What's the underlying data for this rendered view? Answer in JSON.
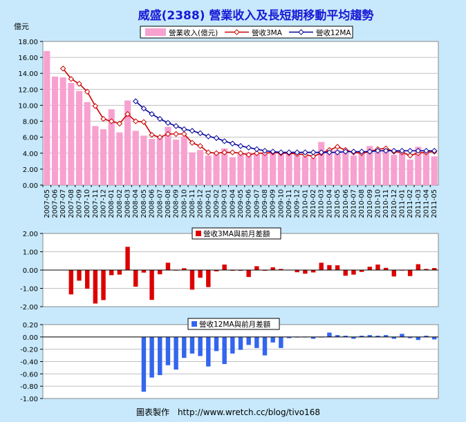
{
  "title": "威盛(2388) 營業收入及長短期移動平均趨勢",
  "footer": "圖表製作　http://www.wretch.cc/blog/tivo168",
  "colors": {
    "background": "#c7e9fb",
    "revenue_bar": "#f7a1d0",
    "ma3_line": "#cc0000",
    "ma12_line": "#000099",
    "diff3_bar": "#dd0000",
    "diff12_bar": "#3366ee"
  },
  "chart_data": [
    {
      "type": "bar",
      "ylabel": "億元",
      "ylim": [
        0,
        18
      ],
      "yticks": [
        "0.00",
        "2.00",
        "4.00",
        "6.00",
        "8.00",
        "10.00",
        "12.00",
        "14.00",
        "16.00",
        "18.00"
      ],
      "legend_position": "top",
      "categories": [
        "2007-05",
        "2007-06",
        "2007-07",
        "2007-08",
        "2007-09",
        "2007-10",
        "2007-11",
        "2007-12",
        "2008-01",
        "2008-02",
        "2008-03",
        "2008-04",
        "2008-05",
        "2008-06",
        "2008-07",
        "2008-08",
        "2008-09",
        "2008-10",
        "2008-11",
        "2008-12",
        "2009-01",
        "2009-02",
        "2009-03",
        "2009-04",
        "2009-05",
        "2009-06",
        "2009-07",
        "2009-08",
        "2009-09",
        "2009-10",
        "2009-11",
        "2009-12",
        "2010-01",
        "2010-02",
        "2010-03",
        "2010-04",
        "2010-05",
        "2010-06",
        "2010-07",
        "2010-08",
        "2010-09",
        "2010-10",
        "2010-11",
        "2010-12",
        "2011-01",
        "2011-02",
        "2011-03",
        "2011-04",
        "2011-05"
      ],
      "series": [
        {
          "name": "營業收入(億元)",
          "type": "bar",
          "values": [
            16.8,
            13.6,
            13.5,
            12.8,
            11.8,
            10.4,
            7.4,
            7.0,
            9.5,
            6.6,
            10.6,
            6.8,
            6.2,
            5.8,
            6.0,
            7.3,
            5.7,
            6.1,
            4.1,
            4.4,
            3.7,
            4.1,
            4.6,
            3.5,
            3.9,
            4.1,
            3.9,
            4.1,
            4.1,
            4.0,
            3.9,
            3.9,
            3.6,
            3.4,
            5.4,
            4.5,
            4.4,
            4.2,
            3.7,
            4.1,
            4.9,
            4.3,
            4.5,
            3.8,
            4.1,
            3.2,
            4.8,
            4.2,
            3.6
          ]
        },
        {
          "name": "營收3MA",
          "type": "line",
          "values": [
            null,
            null,
            14.6,
            13.3,
            12.7,
            11.7,
            9.9,
            8.3,
            8.0,
            7.7,
            8.9,
            8.0,
            7.9,
            6.3,
            6.0,
            6.4,
            6.4,
            6.4,
            5.3,
            4.9,
            4.1,
            4.0,
            4.1,
            4.1,
            4.0,
            3.8,
            4.0,
            4.0,
            4.1,
            4.0,
            4.0,
            3.9,
            3.8,
            3.6,
            4.0,
            4.4,
            4.8,
            4.4,
            4.1,
            4.0,
            4.2,
            4.5,
            4.6,
            4.2,
            4.1,
            3.7,
            4.0,
            4.1,
            4.2
          ]
        },
        {
          "name": "營收12MA",
          "type": "line",
          "values": [
            null,
            null,
            null,
            null,
            null,
            null,
            null,
            null,
            null,
            null,
            null,
            10.5,
            9.6,
            8.9,
            8.3,
            7.8,
            7.4,
            7.0,
            6.8,
            6.5,
            6.1,
            5.9,
            5.5,
            5.2,
            4.9,
            4.7,
            4.5,
            4.3,
            4.2,
            4.1,
            4.1,
            4.1,
            4.1,
            4.1,
            4.1,
            4.1,
            4.1,
            4.2,
            4.2,
            4.2,
            4.2,
            4.3,
            4.3,
            4.3,
            4.3,
            4.3,
            4.3,
            4.3,
            4.3
          ]
        }
      ]
    },
    {
      "type": "bar",
      "ylim": [
        -2,
        2
      ],
      "yticks": [
        "-2.00",
        "-1.00",
        "0.00",
        "1.00",
        "2.00"
      ],
      "legend_position": "top",
      "series": [
        {
          "name": "營收3MA與前月差額",
          "values": [
            null,
            null,
            null,
            -1.33,
            -0.58,
            -1.02,
            -1.83,
            -1.64,
            -0.28,
            -0.25,
            1.27,
            -0.91,
            -0.14,
            -1.63,
            -0.23,
            0.4,
            0.0,
            0.1,
            -1.07,
            -0.42,
            -0.93,
            -0.07,
            0.3,
            -0.04,
            -0.04,
            -0.38,
            0.21,
            -0.04,
            0.15,
            0.06,
            0.02,
            -0.12,
            -0.2,
            -0.13,
            0.4,
            0.27,
            0.26,
            -0.31,
            -0.25,
            -0.1,
            0.18,
            0.3,
            0.12,
            -0.35,
            -0.02,
            -0.33,
            0.32,
            0.06,
            0.11
          ]
        }
      ]
    },
    {
      "type": "bar",
      "ylim": [
        -1,
        0.2
      ],
      "yticks": [
        "-1.00",
        "-0.80",
        "-0.60",
        "-0.40",
        "-0.20",
        "0.00",
        "0.20"
      ],
      "legend_position": "top",
      "series": [
        {
          "name": "營收12MA與前月差額",
          "values": [
            null,
            null,
            null,
            null,
            null,
            null,
            null,
            null,
            null,
            null,
            null,
            null,
            -0.89,
            -0.66,
            -0.62,
            -0.46,
            -0.53,
            -0.34,
            -0.27,
            -0.31,
            -0.48,
            -0.23,
            -0.44,
            -0.27,
            -0.21,
            -0.13,
            -0.18,
            -0.3,
            -0.09,
            -0.18,
            -0.02,
            -0.01,
            0.0,
            -0.03,
            0.0,
            0.07,
            0.03,
            0.02,
            -0.03,
            0.02,
            0.03,
            0.02,
            0.03,
            -0.03,
            0.05,
            -0.02,
            -0.05,
            0.02,
            -0.04
          ]
        }
      ]
    }
  ]
}
